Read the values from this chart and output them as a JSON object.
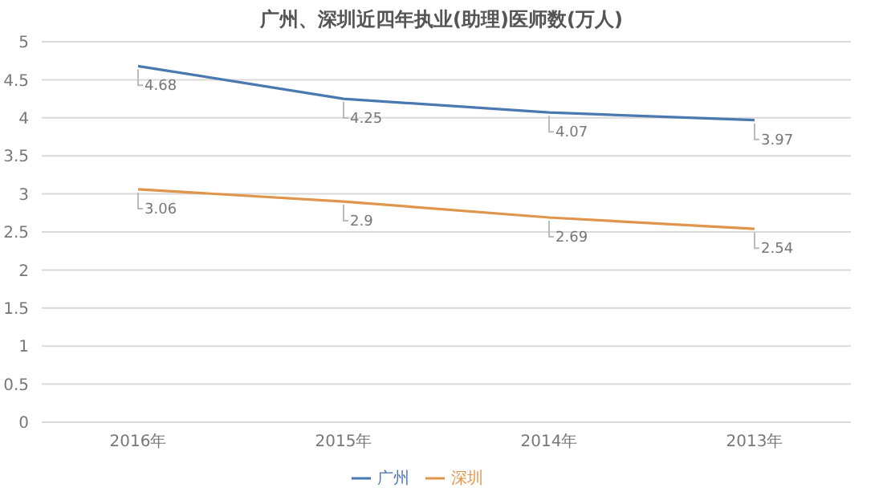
{
  "chart_data": {
    "type": "line",
    "title": "广州、深圳近四年执业(助理)医师数(万人)",
    "categories": [
      "2016年",
      "2015年",
      "2014年",
      "2013年"
    ],
    "series": [
      {
        "name": "广州",
        "color": "#4a78b0",
        "values": [
          4.68,
          4.25,
          4.07,
          3.97
        ]
      },
      {
        "name": "深圳",
        "color": "#e0954c",
        "values": [
          3.06,
          2.9,
          2.69,
          2.54
        ]
      }
    ],
    "ylim": [
      0,
      5
    ],
    "yticks": [
      0,
      0.5,
      1,
      1.5,
      2,
      2.5,
      3,
      3.5,
      4,
      4.5,
      5
    ],
    "grid": "y",
    "legend": "bottom",
    "data_labels": true,
    "marker": "none",
    "line_style": "solid"
  }
}
